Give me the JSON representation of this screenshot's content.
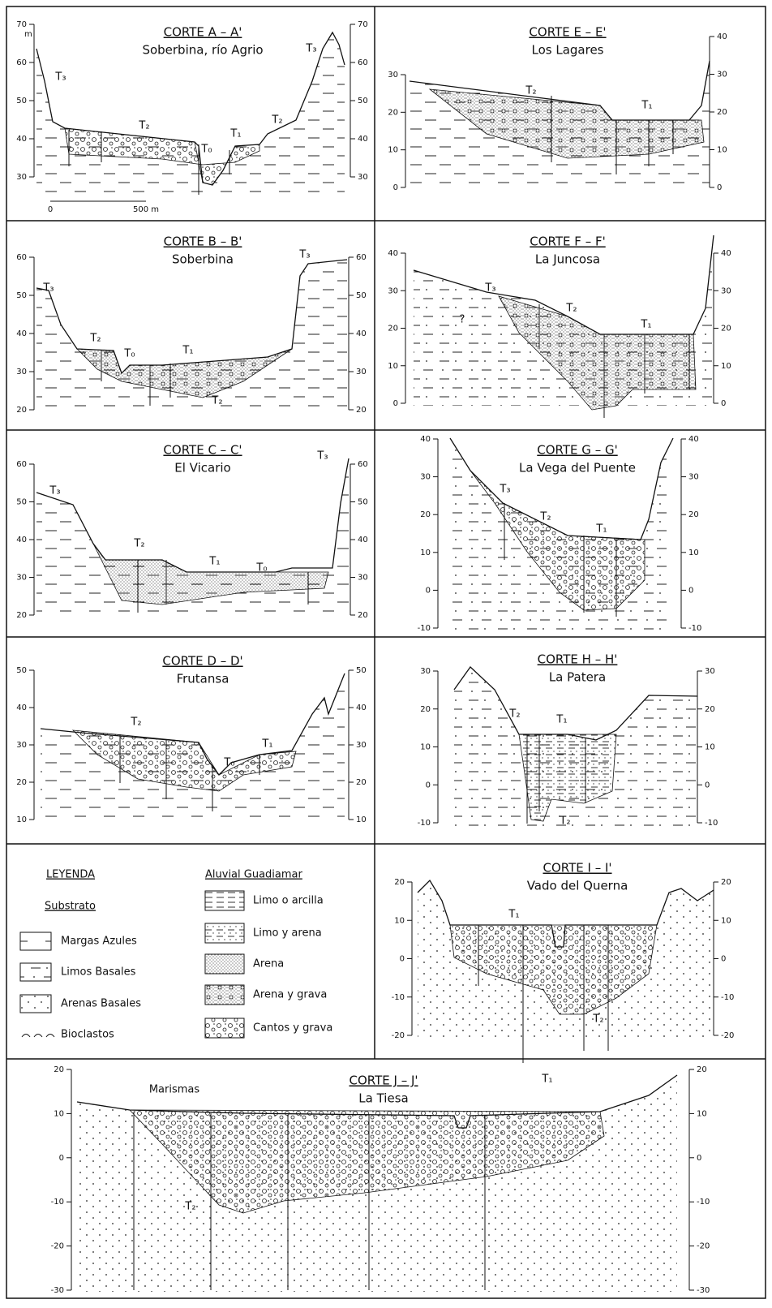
{
  "panels": [
    {
      "title": "CORTE A – A'",
      "subtitle": "Soberbina, río Agrio",
      "left_ticks": [
        70,
        60,
        50,
        40,
        30
      ],
      "right_ticks": [
        70,
        60,
        50,
        40,
        30
      ],
      "labels": [
        "T₃",
        "T₂",
        "T₀",
        "T₁",
        "T₂",
        "T₃"
      ],
      "unit": "m",
      "scale": [
        "0",
        "500 m"
      ]
    },
    {
      "title": "CORTE B – B'",
      "subtitle": "Soberbina",
      "left_ticks": [
        60,
        50,
        40,
        30,
        20
      ],
      "right_ticks": [
        60,
        50,
        40,
        30,
        20
      ],
      "labels": [
        "T₃",
        "T₂",
        "T₀",
        "T₁",
        "T₂",
        "T₃"
      ]
    },
    {
      "title": "CORTE C – C'",
      "subtitle": "El Vicario",
      "left_ticks": [
        60,
        50,
        40,
        30,
        20
      ],
      "right_ticks": [
        60,
        50,
        40,
        30,
        20
      ],
      "labels": [
        "T₃",
        "T₂",
        "T₁",
        "T₀",
        "T₃"
      ]
    },
    {
      "title": "CORTE D – D'",
      "subtitle": "Frutansa",
      "left_ticks": [
        50,
        40,
        30,
        20,
        10
      ],
      "right_ticks": [
        50,
        40,
        30,
        20,
        10
      ],
      "labels": [
        "T₂",
        "T₀",
        "T₁"
      ]
    },
    {
      "title": "CORTE E – E'",
      "subtitle": "Los Lagares",
      "left_ticks": [
        30,
        20,
        10,
        0
      ],
      "right_ticks": [
        40,
        30,
        20,
        10,
        0
      ],
      "labels": [
        "T₂",
        "T₁"
      ]
    },
    {
      "title": "CORTE F – F'",
      "subtitle": "La Juncosa",
      "left_ticks": [
        40,
        30,
        20,
        10,
        0
      ],
      "right_ticks": [
        40,
        30,
        20,
        10,
        0
      ],
      "labels": [
        "T₃",
        "T₂",
        "T₁",
        "?"
      ]
    },
    {
      "title": "CORTE G – G'",
      "subtitle": "La Vega del Puente",
      "left_ticks": [
        40,
        30,
        20,
        10,
        0,
        -10
      ],
      "right_ticks": [
        40,
        30,
        20,
        10,
        0,
        -10
      ],
      "labels": [
        "T₃",
        "T₂",
        "T₁"
      ]
    },
    {
      "title": "CORTE H – H'",
      "subtitle": "La Patera",
      "left_ticks": [
        30,
        20,
        10,
        0,
        -10
      ],
      "right_ticks": [
        30,
        20,
        10,
        0,
        -10
      ],
      "labels": [
        "T₂",
        "T₁",
        "T₂"
      ]
    },
    {
      "title": "CORTE I – I'",
      "subtitle": "Vado del Querna",
      "left_ticks": [
        20,
        10,
        0,
        -10,
        -20
      ],
      "right_ticks": [
        20,
        10,
        0,
        -10,
        -20
      ],
      "labels": [
        "T₁",
        "T₂"
      ]
    },
    {
      "title": "CORTE J – J'",
      "subtitle": "La Tiesa",
      "left_ticks": [
        20,
        10,
        0,
        -10,
        -20,
        -30
      ],
      "right_ticks": [
        20,
        10,
        0,
        -10,
        -20,
        -30
      ],
      "labels": [
        "Marismas",
        "T₁",
        "T₂"
      ]
    }
  ],
  "legend": {
    "title": "LEYENDA",
    "substrate_title": "Substrato",
    "substrate": [
      "Margas Azules",
      "Limos Basales",
      "Arenas Basales",
      "Bioclastos"
    ],
    "alluvial_title": "Aluvial Guadiamar",
    "alluvial": [
      "Limo o arcilla",
      "Limo y arena",
      "Arena",
      "Arena y grava",
      "Cantos y grava"
    ]
  }
}
